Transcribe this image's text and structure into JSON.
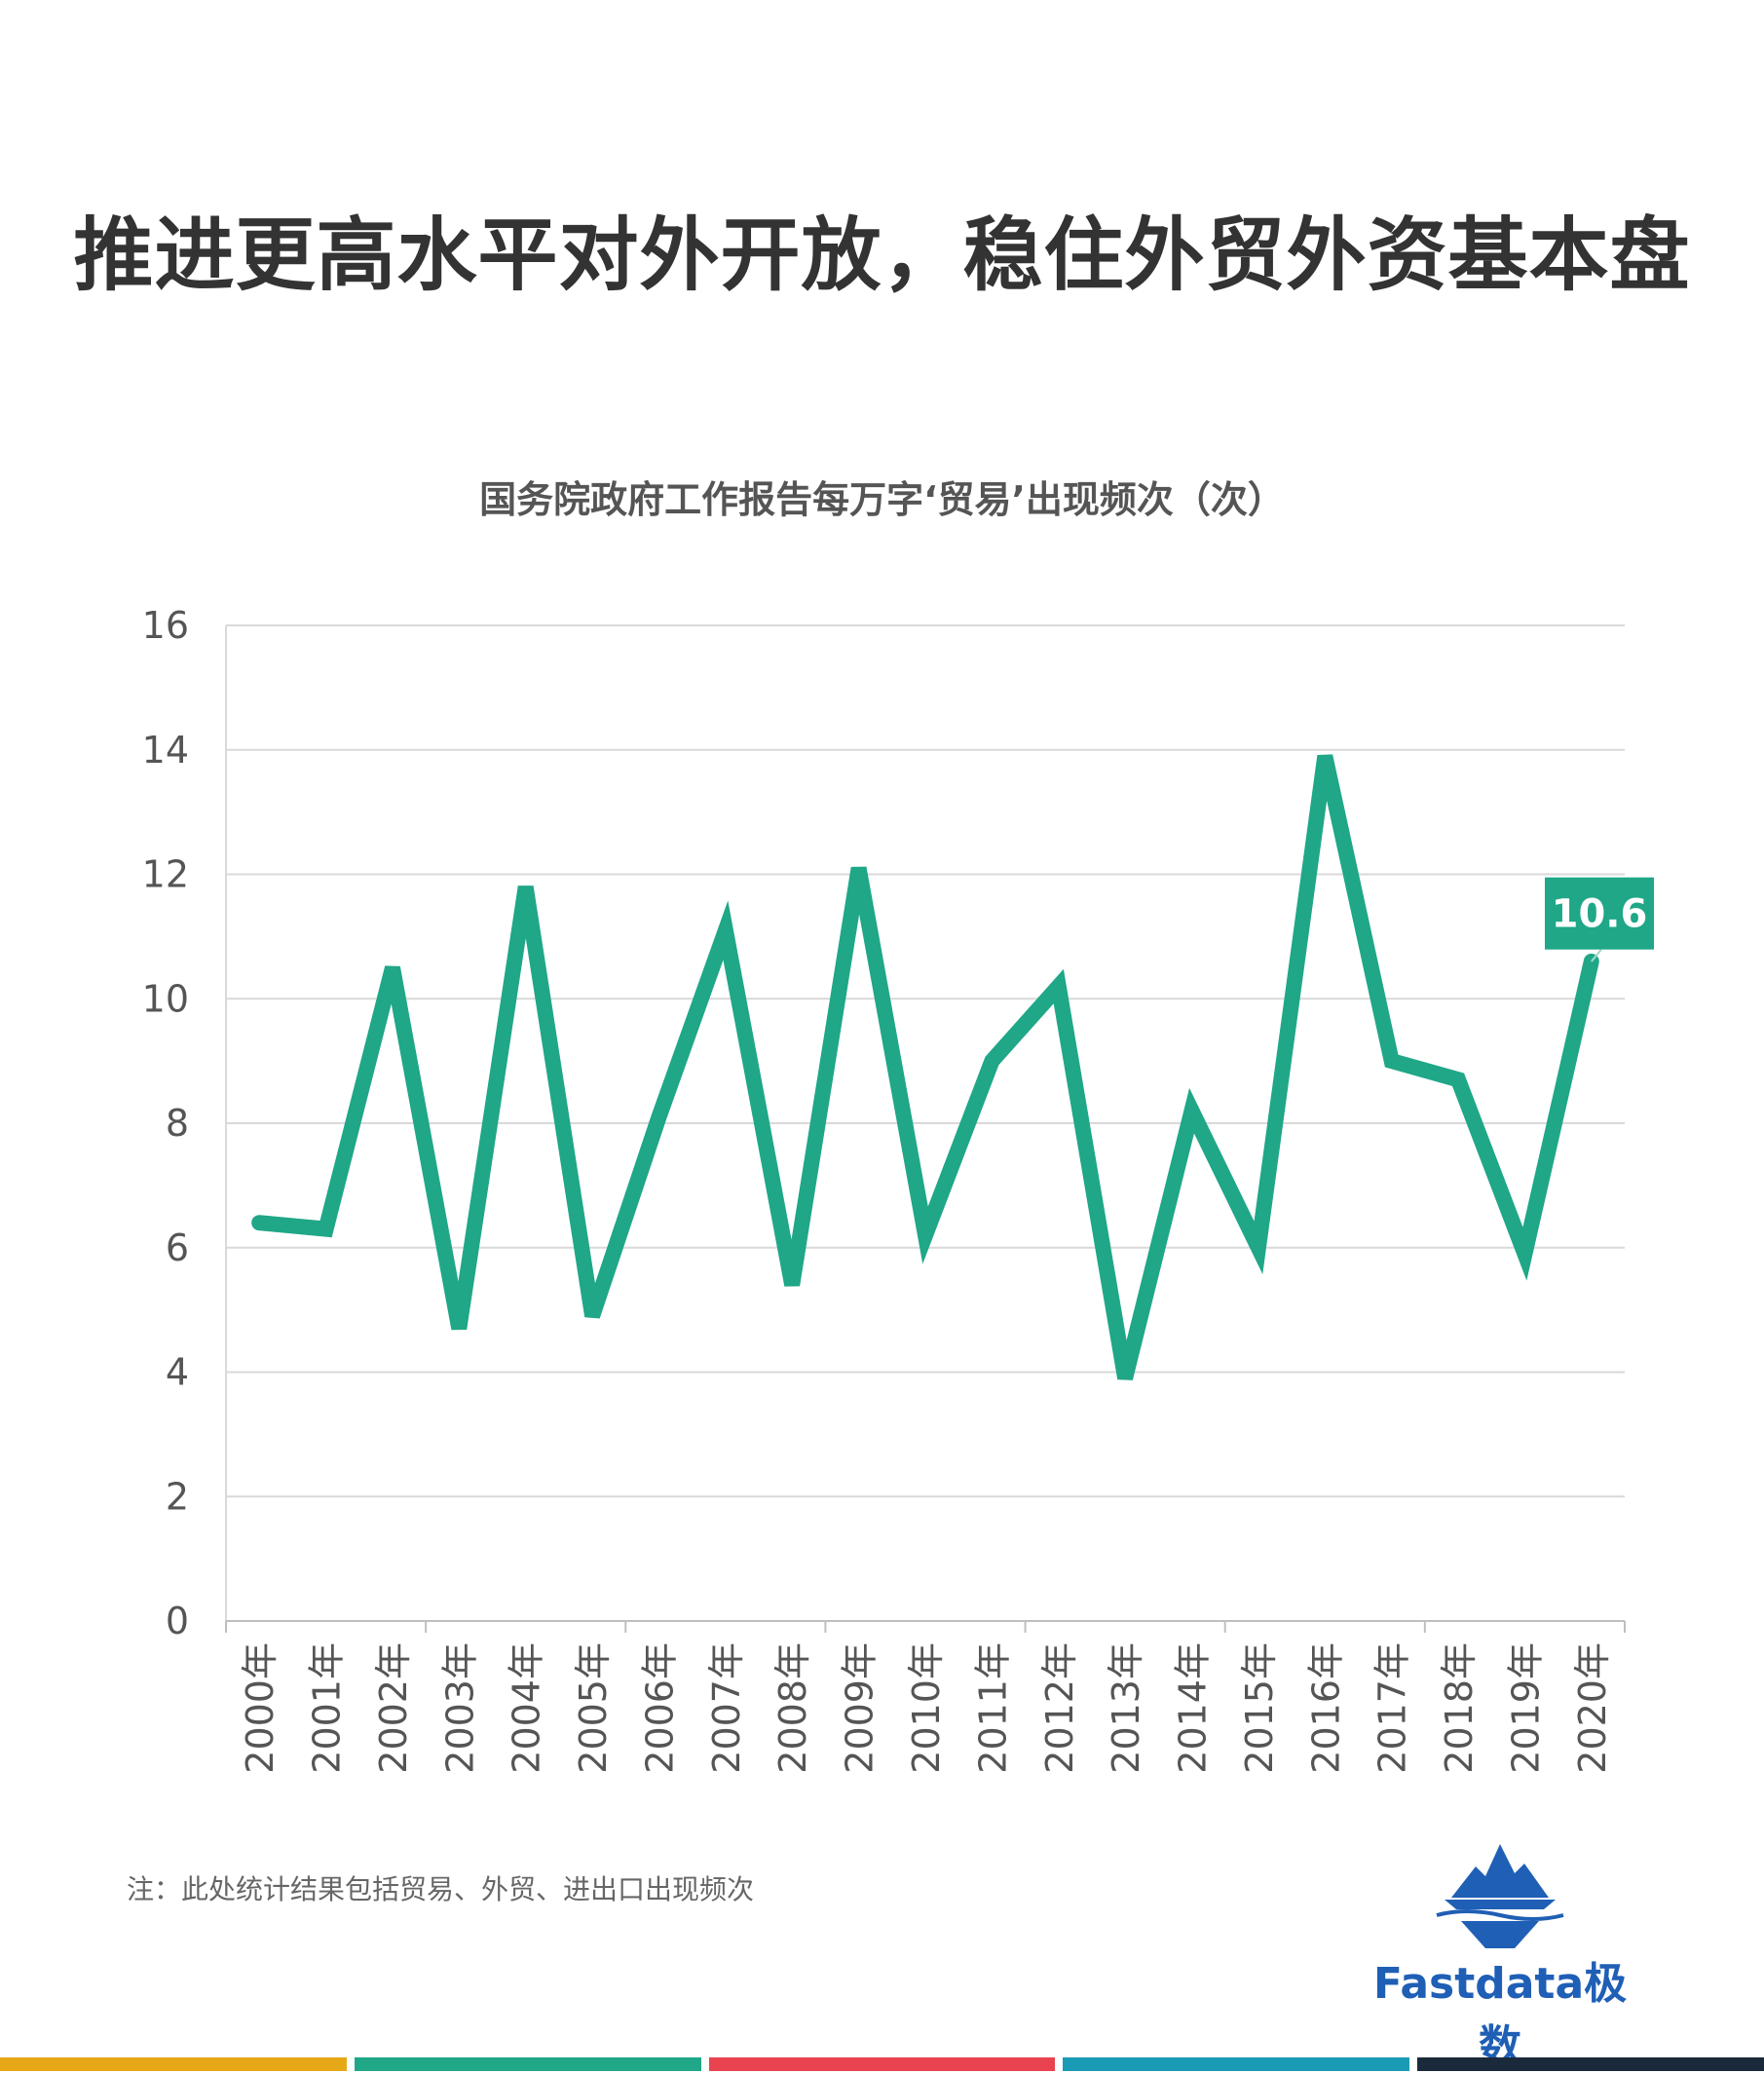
{
  "headline": "推进更高水平对外开放，稳住外贸外资基本盘",
  "chart_data": {
    "type": "line",
    "title": "国务院政府工作报告每万字‘贸易’出现频次（次）",
    "categories": [
      "2000年",
      "2001年",
      "2002年",
      "2003年",
      "2004年",
      "2005年",
      "2006年",
      "2007年",
      "2008年",
      "2009年",
      "2010年",
      "2011年",
      "2012年",
      "2013年",
      "2014年",
      "2015年",
      "2016年",
      "2017年",
      "2018年",
      "2019年",
      "2020年"
    ],
    "series": [
      {
        "values": [
          6.4,
          6.3,
          10.5,
          4.7,
          11.8,
          4.9,
          8.1,
          11.1,
          5.4,
          12.1,
          6.2,
          9.0,
          10.2,
          3.9,
          8.2,
          6.0,
          13.9,
          9.0,
          8.7,
          5.9,
          10.6
        ]
      }
    ],
    "ylim": [
      0,
      16
    ],
    "yticks": [
      0,
      2,
      4,
      6,
      8,
      10,
      12,
      14,
      16
    ],
    "callout": {
      "category": "2020年",
      "label": "10.6"
    },
    "grid": true,
    "colors": {
      "line": "#1fa787",
      "grid": "#d9d9d9",
      "axis_text": "#555555"
    }
  },
  "note": "注：此处统计结果包括贸易、外贸、进出口出现频次",
  "logo": {
    "text": "Fastdata极数",
    "icon": "iceberg-icon"
  },
  "bottom_bar_colors": [
    "#e6a817",
    "#1fa787",
    "#e8434f",
    "#1a9bb5",
    "#1b2a3a"
  ]
}
